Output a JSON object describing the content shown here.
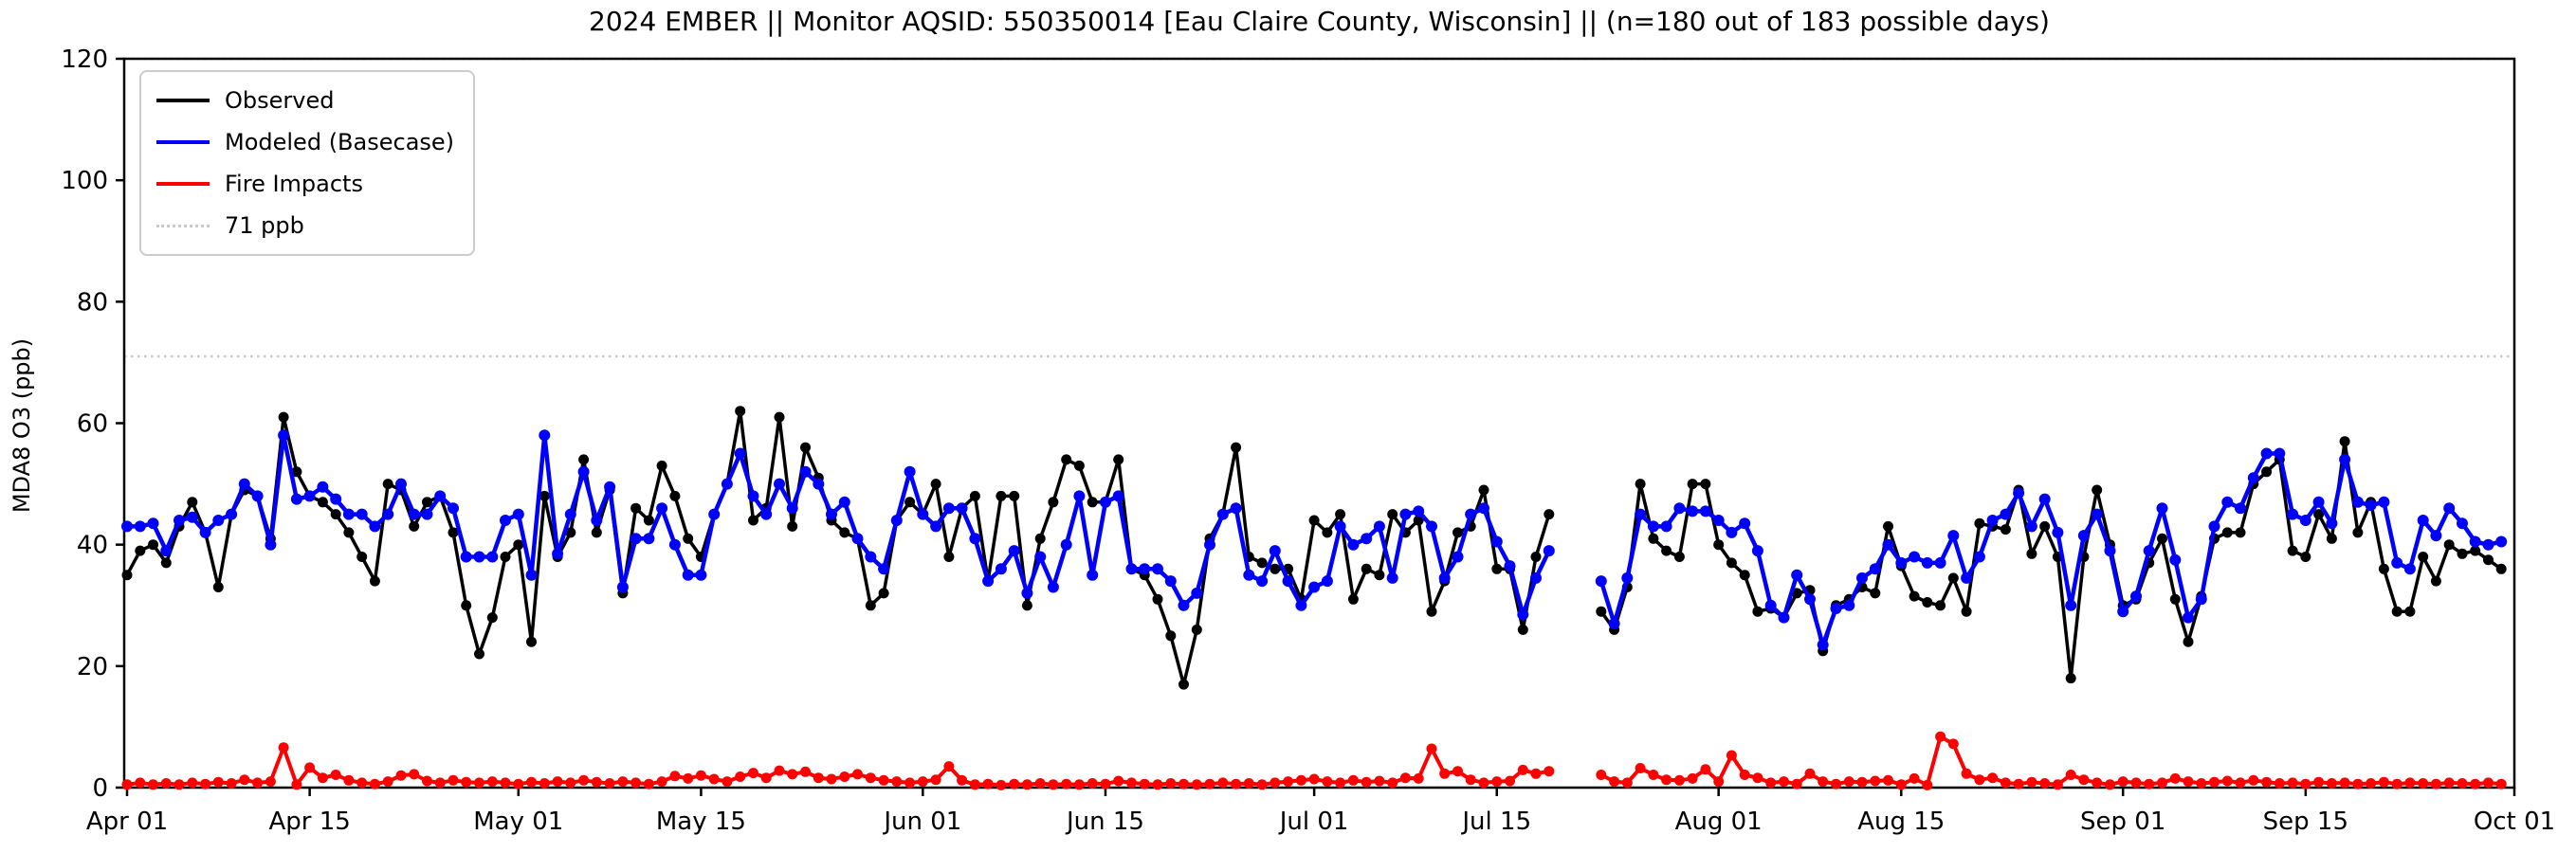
{
  "title": "2024 EMBER || Monitor AQSID: 550350014 [Eau Claire County, Wisconsin] || (n=180 out of 183 possible days)",
  "y_axis_label": "MDA8 O3 (ppb)",
  "legend": {
    "items": [
      {
        "label": "Observed",
        "color": "#000000",
        "style": "solid"
      },
      {
        "label": "Modeled (Basecase)",
        "color": "#0000ff",
        "style": "solid"
      },
      {
        "label": "Fire Impacts",
        "color": "#ff0000",
        "style": "solid"
      },
      {
        "label": "71 ppb",
        "color": "#c9c9c9",
        "style": "dotted"
      }
    ]
  },
  "chart_data": {
    "type": "line",
    "title": "2024 EMBER || Monitor AQSID: 550350014 [Eau Claire County, Wisconsin] || (n=180 out of 183 possible days)",
    "xlabel": "",
    "ylabel": "MDA8 O3 (ppb)",
    "ylim": [
      0,
      120
    ],
    "y_ticks": [
      0,
      20,
      40,
      60,
      80,
      100,
      120
    ],
    "x_start_date": "2024-04-01",
    "x_end_date": "2024-10-01",
    "n_days": 183,
    "missing_day_indices": [
      110,
      111,
      112
    ],
    "x_ticks": [
      {
        "index": 0,
        "label": "Apr 01"
      },
      {
        "index": 14,
        "label": "Apr 15"
      },
      {
        "index": 30,
        "label": "May 01"
      },
      {
        "index": 44,
        "label": "May 15"
      },
      {
        "index": 61,
        "label": "Jun 01"
      },
      {
        "index": 75,
        "label": "Jun 15"
      },
      {
        "index": 91,
        "label": "Jul 01"
      },
      {
        "index": 105,
        "label": "Jul 15"
      },
      {
        "index": 122,
        "label": "Aug 01"
      },
      {
        "index": 136,
        "label": "Aug 15"
      },
      {
        "index": 153,
        "label": "Sep 01"
      },
      {
        "index": 167,
        "label": "Sep 15"
      },
      {
        "index": 183,
        "label": "Oct 01"
      }
    ],
    "reference_lines": [
      {
        "value": 71,
        "label": "71 ppb",
        "color": "#c9c9c9",
        "style": "dotted"
      },
      {
        "value": 120,
        "label": "",
        "color": "#d9d9d9",
        "style": "dotted"
      }
    ],
    "legend_position": "upper left",
    "grid": false,
    "series": [
      {
        "name": "Observed",
        "color": "#000000",
        "line_width": 3.5,
        "marker_radius": 5.5,
        "values": [
          35,
          39,
          40,
          37,
          43,
          47,
          42,
          33,
          45,
          49,
          48,
          41,
          61,
          52,
          48,
          47,
          45,
          42,
          38,
          34,
          50,
          49,
          43,
          47,
          48,
          42,
          30,
          22,
          28,
          38,
          40,
          24,
          48,
          38,
          42,
          54,
          42,
          49,
          32,
          46,
          44,
          53,
          48,
          41,
          38,
          45,
          50,
          62,
          44,
          46,
          61,
          43,
          56,
          51,
          44,
          42,
          41,
          30,
          32,
          44,
          47,
          45,
          50,
          38,
          46,
          48,
          34,
          48,
          48,
          30,
          41,
          47,
          54,
          53,
          47,
          47,
          54,
          36,
          35,
          31,
          25,
          17,
          26,
          41,
          45,
          56,
          38,
          37,
          36,
          36,
          31,
          44,
          42,
          45,
          31,
          36,
          35,
          45,
          42,
          44,
          29,
          34,
          42,
          43,
          49,
          36,
          36,
          26,
          38,
          45,
          null,
          null,
          null,
          29,
          26,
          33,
          50,
          41,
          39,
          38,
          50,
          50,
          40,
          37,
          35,
          29,
          29.5,
          28,
          32,
          32.5,
          22.5,
          30,
          31,
          33,
          32,
          43,
          36.5,
          31.5,
          30.5,
          30,
          34.5,
          29,
          43.5,
          43,
          42.5,
          49,
          38.5,
          43,
          38,
          18,
          38,
          49,
          40,
          30,
          31,
          37,
          41,
          31,
          24,
          31.5,
          41,
          42,
          42,
          50,
          52,
          54,
          39,
          38,
          45,
          41,
          57,
          42,
          47,
          36,
          29,
          29,
          38,
          34,
          40,
          38.5,
          39,
          37.5,
          36
        ]
      },
      {
        "name": "Modeled (Basecase)",
        "color": "#0000ff",
        "line_width": 4.5,
        "marker_radius": 6,
        "values": [
          43,
          43,
          43.5,
          39,
          44,
          44.5,
          42,
          44,
          45,
          50,
          48,
          40,
          58,
          47.5,
          48,
          49.5,
          47.5,
          45,
          45,
          43,
          45,
          50,
          45,
          45,
          48,
          46,
          38,
          38,
          38,
          44,
          45,
          35,
          58,
          38.5,
          45,
          52,
          44,
          49.5,
          33,
          41,
          41,
          46,
          40,
          35,
          35,
          45,
          50,
          55,
          48,
          45,
          50,
          46,
          52,
          50,
          45,
          47,
          41,
          38,
          36,
          44,
          52,
          45,
          43,
          46,
          46,
          41,
          34,
          36,
          39,
          32,
          38,
          33,
          40,
          48,
          35,
          47,
          48,
          36,
          36,
          36,
          34,
          30,
          32,
          40,
          45,
          46,
          35,
          34,
          39,
          34,
          30,
          33,
          34,
          43,
          40,
          41,
          43,
          34.5,
          45,
          45.5,
          43,
          34.5,
          38,
          45,
          46,
          40.5,
          36.5,
          28.5,
          34.5,
          39,
          null,
          null,
          null,
          34,
          27,
          34.5,
          45,
          43,
          43,
          46,
          45.5,
          45.5,
          44,
          42,
          43.5,
          39,
          30,
          28,
          35,
          31,
          23.5,
          29.5,
          30,
          34.5,
          36,
          40,
          37,
          38,
          37,
          37,
          41.5,
          34.5,
          38,
          44,
          45,
          48.5,
          43,
          47.5,
          42,
          30,
          41.5,
          45,
          39,
          29,
          31.5,
          39,
          46,
          37.5,
          28,
          31,
          43,
          47,
          46,
          51,
          55,
          55,
          45,
          44,
          47,
          43.5,
          54,
          47,
          46.5,
          47,
          37,
          36,
          44,
          41.5,
          46,
          43.5,
          40.5,
          40,
          40.5
        ]
      },
      {
        "name": "Fire Impacts",
        "color": "#ff0000",
        "line_width": 4,
        "marker_radius": 5.5,
        "values": [
          0.5,
          0.8,
          0.5,
          0.7,
          0.5,
          0.8,
          0.6,
          0.9,
          0.7,
          1.3,
          0.8,
          1,
          6.6,
          0.5,
          3.3,
          1.6,
          2.1,
          1.2,
          0.8,
          0.6,
          1,
          2,
          2.2,
          1.1,
          0.8,
          1.2,
          0.9,
          0.8,
          1,
          0.8,
          0.6,
          0.9,
          0.7,
          1,
          0.8,
          1.2,
          0.9,
          0.7,
          1,
          0.8,
          0.6,
          1,
          1.9,
          1.5,
          2,
          1.4,
          1,
          1.8,
          2.4,
          1.6,
          2.8,
          2.2,
          2.6,
          1.6,
          1.4,
          1.8,
          2.2,
          1.6,
          1.2,
          1,
          0.8,
          1,
          1.3,
          3.5,
          1.2,
          0.5,
          0.6,
          0.4,
          0.6,
          0.5,
          0.7,
          0.5,
          0.6,
          0.5,
          0.7,
          0.6,
          1.1,
          0.8,
          0.6,
          0.5,
          0.7,
          0.6,
          0.5,
          0.6,
          0.8,
          0.6,
          0.7,
          0.5,
          0.8,
          1,
          1.2,
          1.4,
          1,
          0.8,
          1.2,
          0.9,
          1.1,
          0.8,
          1.6,
          1.5,
          6.4,
          2.3,
          2.7,
          1.3,
          0.8,
          1,
          1.1,
          2.9,
          2.3,
          2.7,
          null,
          null,
          null,
          2.1,
          1,
          0.8,
          3.2,
          2.1,
          1.3,
          1.2,
          1.5,
          3,
          1,
          5.3,
          2.1,
          1.6,
          0.8,
          1,
          0.6,
          2.3,
          1,
          0.6,
          1,
          0.9,
          1.1,
          1.2,
          0.5,
          1.5,
          0.4,
          8.4,
          7.2,
          2.3,
          1.3,
          1.6,
          0.8,
          0.6,
          0.9,
          0.7,
          0.5,
          2.1,
          1.3,
          0.8,
          0.5,
          1,
          0.8,
          0.6,
          0.8,
          1.5,
          1,
          0.7,
          0.9,
          1.1,
          0.8,
          1.2,
          0.9,
          0.7,
          0.8,
          0.6,
          0.9,
          0.7,
          0.8,
          0.6,
          0.7,
          0.9,
          0.6,
          0.8,
          0.7,
          0.6,
          0.8,
          0.7,
          0.6,
          0.8,
          0.6
        ]
      }
    ]
  }
}
